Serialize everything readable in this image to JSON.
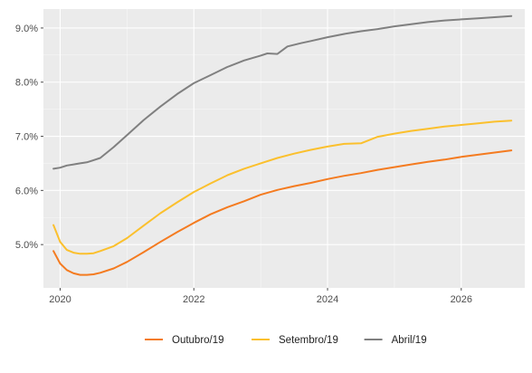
{
  "chart_data": {
    "type": "line",
    "title": "",
    "xlabel": "",
    "ylabel": "",
    "xlim": [
      2019.75,
      2026.95
    ],
    "ylim": [
      4.2,
      9.35
    ],
    "x_ticks": [
      2020,
      2022,
      2024,
      2026
    ],
    "x_tick_labels": [
      "2020",
      "2022",
      "2024",
      "2026"
    ],
    "y_ticks": [
      5,
      6,
      7,
      8,
      9
    ],
    "y_tick_labels": [
      "5.0%",
      "6.0%",
      "7.0%",
      "8.0%",
      "9.0%"
    ],
    "grid": true,
    "legend_position": "bottom",
    "series": [
      {
        "name": "Outubro/19",
        "color": "#f47b20",
        "x": [
          2019.9,
          2020.0,
          2020.1,
          2020.2,
          2020.3,
          2020.4,
          2020.5,
          2020.6,
          2020.8,
          2021.0,
          2021.25,
          2021.5,
          2021.75,
          2022.0,
          2022.25,
          2022.5,
          2022.75,
          2023.0,
          2023.25,
          2023.5,
          2023.75,
          2024.0,
          2024.25,
          2024.5,
          2024.75,
          2025.0,
          2025.25,
          2025.5,
          2025.75,
          2026.0,
          2026.25,
          2026.5,
          2026.75
        ],
        "values": [
          4.88,
          4.65,
          4.53,
          4.47,
          4.44,
          4.44,
          4.45,
          4.48,
          4.56,
          4.68,
          4.86,
          5.05,
          5.23,
          5.4,
          5.56,
          5.69,
          5.8,
          5.92,
          6.01,
          6.08,
          6.14,
          6.21,
          6.27,
          6.32,
          6.38,
          6.43,
          6.48,
          6.53,
          6.57,
          6.62,
          6.66,
          6.7,
          6.74
        ]
      },
      {
        "name": "Setembro/19",
        "color": "#fbc02d",
        "x": [
          2019.9,
          2020.0,
          2020.1,
          2020.2,
          2020.3,
          2020.4,
          2020.5,
          2020.6,
          2020.8,
          2021.0,
          2021.25,
          2021.5,
          2021.75,
          2022.0,
          2022.25,
          2022.5,
          2022.75,
          2023.0,
          2023.25,
          2023.5,
          2023.75,
          2024.0,
          2024.25,
          2024.5,
          2024.75,
          2025.0,
          2025.25,
          2025.5,
          2025.75,
          2026.0,
          2026.25,
          2026.5,
          2026.75
        ],
        "values": [
          5.36,
          5.05,
          4.9,
          4.85,
          4.83,
          4.83,
          4.84,
          4.88,
          4.97,
          5.12,
          5.35,
          5.58,
          5.78,
          5.97,
          6.13,
          6.28,
          6.4,
          6.5,
          6.6,
          6.68,
          6.75,
          6.81,
          6.86,
          6.87,
          6.99,
          7.05,
          7.1,
          7.14,
          7.18,
          7.21,
          7.24,
          7.27,
          7.29
        ]
      },
      {
        "name": "Abril/19",
        "color": "#808080",
        "x": [
          2019.9,
          2020.0,
          2020.1,
          2020.2,
          2020.3,
          2020.4,
          2020.5,
          2020.6,
          2020.8,
          2021.0,
          2021.25,
          2021.5,
          2021.75,
          2022.0,
          2022.25,
          2022.5,
          2022.75,
          2023.0,
          2023.1,
          2023.25,
          2023.4,
          2023.6,
          2023.75,
          2024.0,
          2024.25,
          2024.5,
          2024.75,
          2025.0,
          2025.25,
          2025.5,
          2025.75,
          2026.0,
          2026.25,
          2026.5,
          2026.75
        ],
        "values": [
          6.4,
          6.42,
          6.46,
          6.48,
          6.5,
          6.52,
          6.56,
          6.6,
          6.8,
          7.02,
          7.3,
          7.55,
          7.78,
          7.98,
          8.13,
          8.28,
          8.4,
          8.49,
          8.53,
          8.52,
          8.66,
          8.72,
          8.76,
          8.83,
          8.89,
          8.94,
          8.98,
          9.03,
          9.07,
          9.11,
          9.14,
          9.16,
          9.18,
          9.2,
          9.22
        ]
      }
    ]
  }
}
